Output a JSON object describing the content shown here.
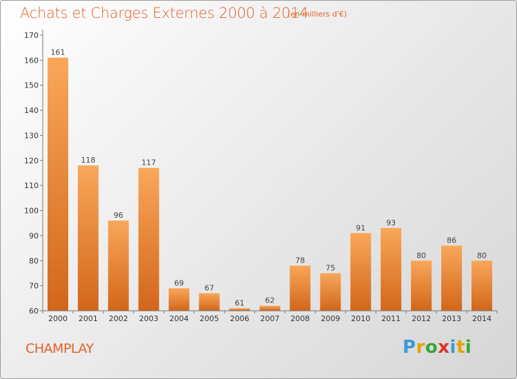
{
  "header": {
    "title": "Achats et Charges Externes 2000 à 2014",
    "subtitle": "(en milliers d'€)"
  },
  "footer": {
    "commune": "CHAMPLAY",
    "logo_letters": [
      "P",
      "r",
      "o",
      "x",
      "i",
      "t",
      "i"
    ],
    "logo_colors": [
      "#3a9ad9",
      "#e5a200",
      "#3aa63a",
      "#d9352b",
      "#3a9ad9",
      "#e5a200",
      "#3aa63a"
    ]
  },
  "chart_data": {
    "type": "bar",
    "title": "Achats et Charges Externes 2000 à 2014",
    "subtitle": "(en milliers d'€)",
    "categories": [
      "2000",
      "2001",
      "2002",
      "2003",
      "2004",
      "2005",
      "2006",
      "2007",
      "2008",
      "2009",
      "2010",
      "2011",
      "2012",
      "2013",
      "2014"
    ],
    "values": [
      161,
      118,
      96,
      117,
      69,
      67,
      61,
      62,
      78,
      75,
      91,
      93,
      80,
      86,
      80
    ],
    "xlabel": "",
    "ylabel": "",
    "ylim": [
      60,
      170
    ],
    "yticks": [
      60,
      70,
      80,
      90,
      100,
      110,
      120,
      130,
      140,
      150,
      160,
      170
    ],
    "grid": false,
    "legend": "none",
    "bar_color_top": "#f9a75a",
    "bar_color_bottom": "#d2661a"
  }
}
